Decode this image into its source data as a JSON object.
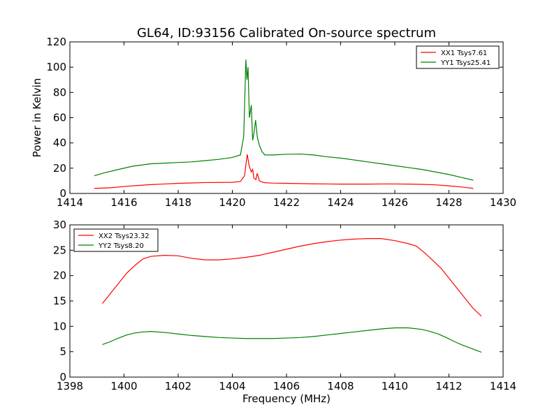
{
  "chart_data": [
    {
      "type": "line",
      "title": "GL64, ID:93156 Calibrated On-source spectrum",
      "xlabel": "",
      "ylabel": "Power in Kelvin",
      "xlim": [
        1414,
        1430
      ],
      "ylim": [
        0,
        120
      ],
      "xticks": [
        "1414",
        "1416",
        "1418",
        "1420",
        "1422",
        "1424",
        "1426",
        "1428",
        "1430"
      ],
      "yticks": [
        "0",
        "20",
        "40",
        "60",
        "80",
        "100",
        "120"
      ],
      "grid": false,
      "legend": "top-right",
      "series": [
        {
          "name": "XX1 Tsys7.61",
          "color": "#ff0000",
          "x": [
            1414.9,
            1415.5,
            1416.0,
            1416.5,
            1417.0,
            1417.5,
            1418.0,
            1418.5,
            1419.0,
            1419.5,
            1420.0,
            1420.3,
            1420.45,
            1420.55,
            1420.62,
            1420.7,
            1420.75,
            1420.8,
            1420.87,
            1420.92,
            1421.0,
            1421.1,
            1421.2,
            1421.5,
            1422.0,
            1422.5,
            1423.0,
            1423.5,
            1424.0,
            1424.5,
            1425.0,
            1425.5,
            1426.0,
            1426.5,
            1427.0,
            1427.5,
            1428.0,
            1428.5,
            1428.9
          ],
          "y": [
            4.0,
            4.5,
            5.5,
            6.3,
            7.0,
            7.5,
            8.0,
            8.3,
            8.6,
            8.7,
            8.8,
            9.5,
            14.0,
            31.0,
            22.0,
            17.0,
            19.0,
            12.0,
            11.0,
            16.0,
            10.0,
            9.0,
            8.5,
            8.2,
            8.0,
            7.8,
            7.6,
            7.5,
            7.4,
            7.4,
            7.4,
            7.5,
            7.5,
            7.4,
            7.2,
            6.8,
            6.0,
            5.0,
            4.0
          ]
        },
        {
          "name": "YY1 Tsys25.41",
          "color": "#008000",
          "x": [
            1414.9,
            1415.3,
            1415.8,
            1416.3,
            1417.0,
            1417.5,
            1418.0,
            1418.5,
            1419.0,
            1419.5,
            1420.0,
            1420.3,
            1420.42,
            1420.5,
            1420.54,
            1420.58,
            1420.63,
            1420.7,
            1420.75,
            1420.8,
            1420.86,
            1420.92,
            1421.0,
            1421.1,
            1421.2,
            1421.5,
            1422.0,
            1422.5,
            1423.0,
            1423.5,
            1424.0,
            1424.5,
            1425.0,
            1425.5,
            1426.0,
            1426.5,
            1427.0,
            1427.5,
            1428.0,
            1428.5,
            1428.9
          ],
          "y": [
            14.0,
            16.5,
            19.0,
            21.5,
            23.5,
            24.0,
            24.5,
            25.0,
            26.0,
            27.0,
            28.5,
            30.5,
            45.0,
            106.0,
            90.0,
            100.0,
            60.0,
            70.0,
            42.0,
            48.0,
            58.0,
            45.0,
            38.0,
            33.0,
            30.5,
            30.5,
            31.0,
            31.2,
            30.5,
            29.0,
            28.0,
            26.5,
            25.0,
            23.5,
            22.0,
            20.5,
            19.0,
            17.0,
            15.0,
            12.5,
            10.5
          ]
        }
      ]
    },
    {
      "type": "line",
      "title": "",
      "xlabel": "Frequency (MHz)",
      "ylabel": "",
      "xlim": [
        1398,
        1414
      ],
      "ylim": [
        0,
        30
      ],
      "xticks": [
        "1398",
        "1400",
        "1402",
        "1404",
        "1406",
        "1408",
        "1410",
        "1412",
        "1414"
      ],
      "yticks": [
        "0",
        "5",
        "10",
        "15",
        "20",
        "25",
        "30"
      ],
      "grid": false,
      "legend": "top-left",
      "series": [
        {
          "name": "XX2 Tsys23.32",
          "color": "#ff0000",
          "x": [
            1399.2,
            1399.5,
            1399.8,
            1400.1,
            1400.4,
            1400.7,
            1401.0,
            1401.5,
            1402.0,
            1402.5,
            1403.0,
            1403.5,
            1404.0,
            1404.5,
            1405.0,
            1405.5,
            1406.0,
            1406.5,
            1407.0,
            1407.5,
            1408.0,
            1408.5,
            1409.0,
            1409.5,
            1410.0,
            1410.5,
            1410.8,
            1411.1,
            1411.4,
            1411.7,
            1412.0,
            1412.3,
            1412.6,
            1412.9,
            1413.2
          ],
          "y": [
            14.5,
            16.5,
            18.5,
            20.5,
            22.0,
            23.3,
            23.8,
            24.0,
            23.9,
            23.4,
            23.1,
            23.1,
            23.3,
            23.6,
            24.0,
            24.6,
            25.2,
            25.8,
            26.3,
            26.7,
            27.0,
            27.2,
            27.3,
            27.3,
            26.9,
            26.3,
            25.8,
            24.5,
            23.0,
            21.5,
            19.5,
            17.5,
            15.5,
            13.5,
            12.0
          ]
        },
        {
          "name": "YY2 Tsys8.20",
          "color": "#008000",
          "x": [
            1399.2,
            1399.5,
            1399.8,
            1400.1,
            1400.4,
            1400.7,
            1401.0,
            1401.5,
            1402.0,
            1402.5,
            1403.0,
            1403.5,
            1404.0,
            1404.5,
            1405.0,
            1405.5,
            1406.0,
            1406.5,
            1407.0,
            1407.5,
            1408.0,
            1408.5,
            1409.0,
            1409.5,
            1410.0,
            1410.5,
            1411.0,
            1411.3,
            1411.6,
            1411.9,
            1412.2,
            1412.5,
            1412.8,
            1413.2
          ],
          "y": [
            6.4,
            7.0,
            7.7,
            8.3,
            8.7,
            8.9,
            9.0,
            8.8,
            8.5,
            8.2,
            8.0,
            7.8,
            7.7,
            7.6,
            7.6,
            7.6,
            7.7,
            7.8,
            8.0,
            8.3,
            8.6,
            8.9,
            9.2,
            9.5,
            9.7,
            9.7,
            9.4,
            9.0,
            8.5,
            7.8,
            7.0,
            6.3,
            5.7,
            4.9
          ]
        }
      ]
    }
  ]
}
